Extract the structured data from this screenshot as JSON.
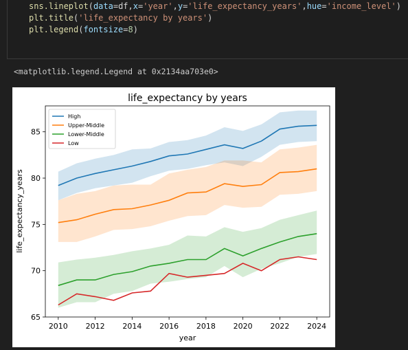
{
  "code": {
    "line1": {
      "fn": "sns.lineplot",
      "open": "(",
      "a1": "data",
      "eq1": "=",
      "v1": "df",
      "c1": ",",
      "a2": "x",
      "eq2": "=",
      "v2": "'year'",
      "c2": ",",
      "a3": "y",
      "eq3": "=",
      "v3": "'life_expectancy_years'",
      "c3": ",",
      "a4": "hue",
      "eq4": "=",
      "v4": "'income_level'",
      "close": ")"
    },
    "line2": {
      "fn": "plt.title",
      "open": "(",
      "v1": "'life_expectancy by years'",
      "close": ")"
    },
    "line3": {
      "fn": "plt.legend",
      "open": "(",
      "a1": "fontsize",
      "eq1": "=",
      "v1": "8",
      "close": ")"
    }
  },
  "output_text": "<matplotlib.legend.Legend at 0x2134aa703e0>",
  "chart_data": {
    "type": "line",
    "title": "life_expectancy by years",
    "xlabel": "year",
    "ylabel": "life_expectancy_years",
    "xlim": [
      2009.3,
      2024.7
    ],
    "ylim": [
      65,
      87.8
    ],
    "xticks": [
      2010,
      2012,
      2014,
      2016,
      2018,
      2020,
      2022,
      2024
    ],
    "yticks": [
      65,
      70,
      75,
      80,
      85
    ],
    "legend_position": "upper-left",
    "grid": false,
    "x": [
      2010,
      2011,
      2012,
      2013,
      2014,
      2015,
      2016,
      2017,
      2018,
      2019,
      2020,
      2021,
      2022,
      2023,
      2024
    ],
    "series": [
      {
        "name": "High",
        "color": "#1f77b4",
        "values": [
          79.2,
          80.0,
          80.5,
          80.9,
          81.3,
          81.8,
          82.4,
          82.6,
          83.1,
          83.6,
          83.2,
          84.0,
          85.3,
          85.6,
          85.7
        ],
        "upper": [
          80.7,
          81.6,
          82.1,
          82.5,
          83.1,
          83.2,
          83.9,
          84.1,
          84.6,
          85.5,
          85.1,
          85.8,
          87.1,
          87.3,
          87.3
        ],
        "lower": [
          77.6,
          78.4,
          78.9,
          79.2,
          79.5,
          80.2,
          80.8,
          81.0,
          81.4,
          81.7,
          81.3,
          82.3,
          83.6,
          83.9,
          84.0
        ]
      },
      {
        "name": "Upper-Middle",
        "color": "#ff7f0e",
        "values": [
          75.2,
          75.5,
          76.1,
          76.6,
          76.7,
          77.1,
          77.6,
          78.4,
          78.5,
          79.4,
          79.1,
          79.3,
          80.6,
          80.7,
          81.0
        ],
        "upper": [
          77.6,
          78.3,
          78.6,
          79.2,
          79.3,
          79.3,
          80.5,
          80.9,
          81.2,
          81.9,
          81.9,
          81.7,
          83.1,
          83.3,
          83.6
        ],
        "lower": [
          73.1,
          73.1,
          73.7,
          74.4,
          74.5,
          74.8,
          75.4,
          75.9,
          76.0,
          77.1,
          76.8,
          76.9,
          78.2,
          78.3,
          78.6
        ]
      },
      {
        "name": "Lower-Middle",
        "color": "#2ca02c",
        "values": [
          68.4,
          69.0,
          69.0,
          69.6,
          69.9,
          70.5,
          70.8,
          71.2,
          71.2,
          72.4,
          71.6,
          72.4,
          73.1,
          73.7,
          74.0
        ],
        "upper": [
          70.9,
          71.2,
          71.4,
          71.7,
          72.1,
          72.4,
          72.8,
          73.8,
          73.7,
          74.7,
          74.2,
          74.6,
          75.5,
          76.0,
          76.5
        ],
        "lower": [
          66.0,
          66.6,
          66.6,
          67.5,
          67.8,
          68.6,
          68.8,
          69.1,
          69.3,
          70.5,
          69.3,
          70.2,
          70.8,
          71.5,
          71.8
        ]
      },
      {
        "name": "Low",
        "color": "#d62728",
        "values": [
          66.3,
          67.5,
          67.2,
          66.8,
          67.6,
          67.8,
          69.7,
          69.3,
          69.5,
          69.7,
          70.8,
          70.0,
          71.2,
          71.5,
          71.2
        ]
      }
    ]
  },
  "colors": {
    "fill_alpha": 0.2
  }
}
